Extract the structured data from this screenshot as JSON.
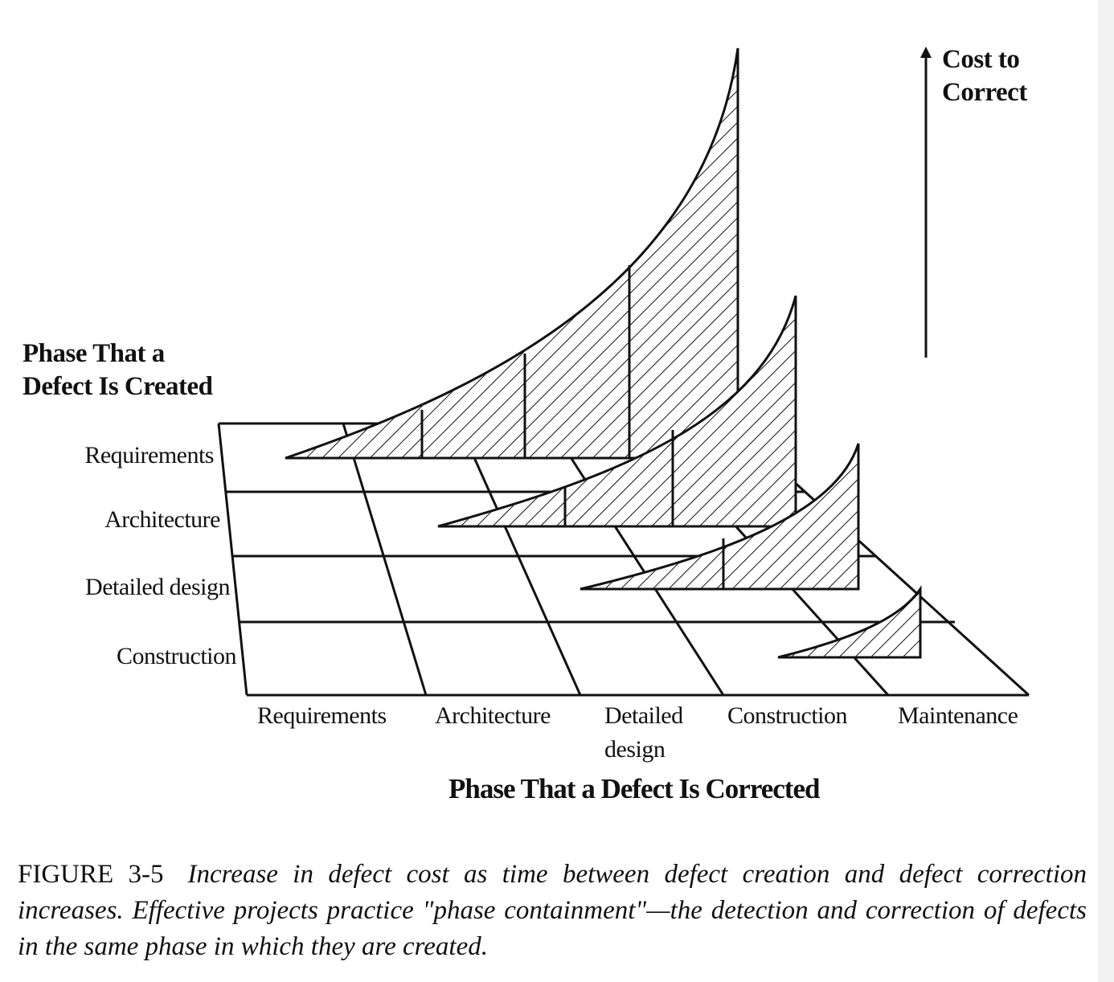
{
  "y_axis_title": [
    "Phase That a",
    "Defect Is Created"
  ],
  "rows": [
    "Requirements",
    "Architecture",
    "Detailed design",
    "Construction"
  ],
  "columns": [
    "Requirements",
    "Architecture",
    "Detailed\ndesign",
    "Construction",
    "Maintenance"
  ],
  "columns_line1": [
    "Requirements",
    "Architecture",
    "Detailed",
    "Construction",
    "Maintenance"
  ],
  "columns_line2": [
    "",
    "",
    "design",
    "",
    ""
  ],
  "x_axis_title": "Phase That a Defect Is Corrected",
  "z_axis_title": [
    "Cost to",
    "Correct"
  ],
  "caption": {
    "label": "FIGURE 3-5",
    "text": "Increase in defect cost as time between defect creation and defect correction increases. Effective projects practice \"phase containment\"—the detection and correction of defects in the same phase in which they are created."
  },
  "colors": {
    "ink": "#111111",
    "background": "#ffffff"
  }
}
